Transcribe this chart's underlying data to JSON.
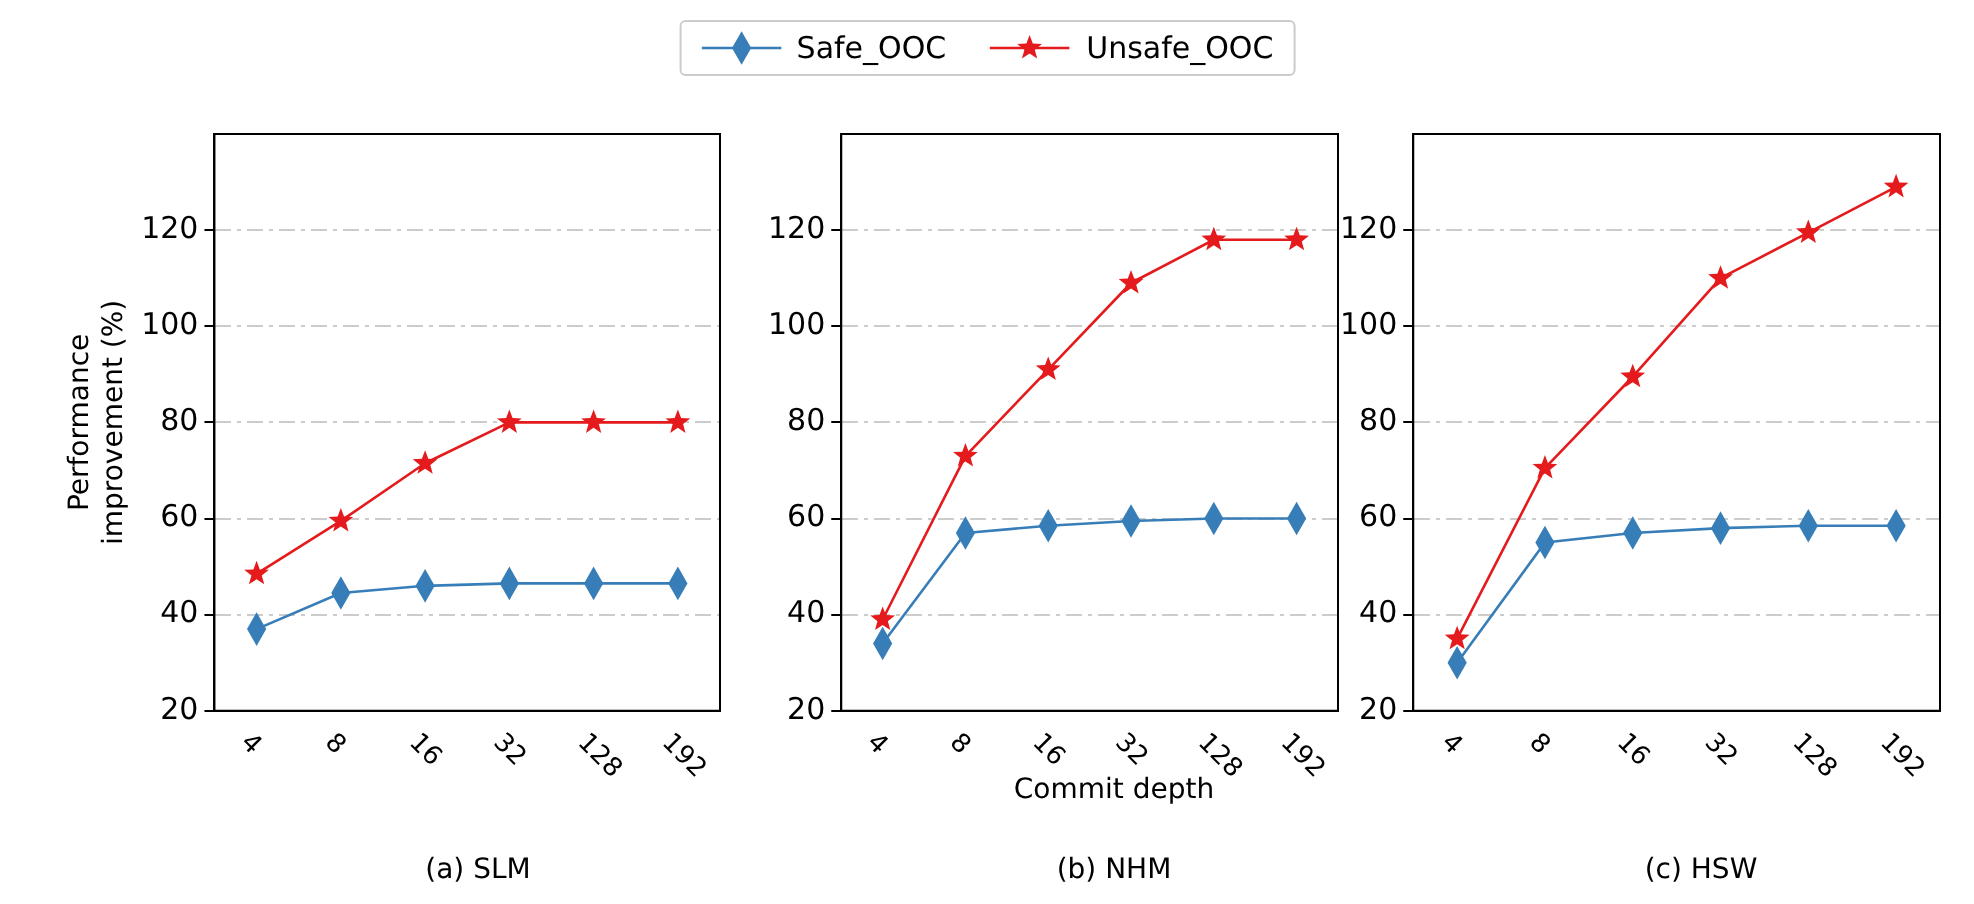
{
  "chart_data": [
    {
      "type": "line",
      "title": "(a) SLM",
      "ylabel": "Performance\nimprovement (%)",
      "categories": [
        "4",
        "8",
        "16",
        "32",
        "128",
        "192"
      ],
      "ylim": [
        20,
        140
      ],
      "yticks": [
        20,
        40,
        60,
        80,
        100,
        120
      ],
      "grid": "y",
      "legend": "top",
      "series": [
        {
          "name": "Safe_OOC",
          "color": "#377eb8",
          "marker": "diamond",
          "values": [
            37,
            44.5,
            46,
            46.5,
            46.5,
            46.5
          ]
        },
        {
          "name": "Unsafe_OOC",
          "color": "#e41a1c",
          "marker": "star",
          "values": [
            48.5,
            59.5,
            71.5,
            80,
            80,
            80
          ]
        }
      ]
    },
    {
      "type": "line",
      "title": "(b) NHM",
      "xlabel": "Commit depth",
      "categories": [
        "4",
        "8",
        "16",
        "32",
        "128",
        "192"
      ],
      "ylim": [
        20,
        140
      ],
      "yticks": [
        20,
        40,
        60,
        80,
        100,
        120
      ],
      "grid": "y",
      "series": [
        {
          "color": "#377eb8",
          "marker": "diamond",
          "values": [
            34,
            57,
            58.5,
            59.5,
            60,
            60
          ]
        },
        {
          "color": "#e41a1c",
          "marker": "star",
          "values": [
            39,
            73,
            91,
            109,
            118,
            118
          ]
        }
      ]
    },
    {
      "type": "line",
      "title": "(c) HSW",
      "categories": [
        "4",
        "8",
        "16",
        "32",
        "128",
        "192"
      ],
      "ylim": [
        20,
        140
      ],
      "yticks": [
        20,
        40,
        60,
        80,
        100,
        120
      ],
      "grid": "y",
      "series": [
        {
          "color": "#377eb8",
          "marker": "diamond",
          "values": [
            30,
            55,
            57,
            58,
            58.5,
            58.5
          ]
        },
        {
          "color": "#e41a1c",
          "marker": "star",
          "values": [
            35,
            70.5,
            89.5,
            110,
            119.5,
            129
          ]
        }
      ]
    }
  ]
}
